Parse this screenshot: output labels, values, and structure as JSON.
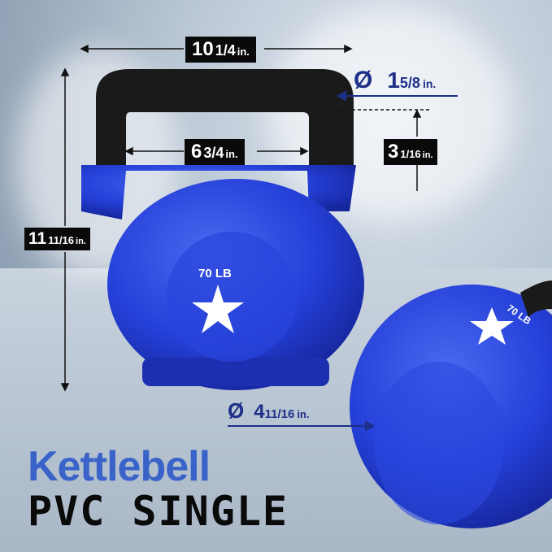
{
  "dimensions": {
    "width": {
      "whole": "10",
      "fraction": "1/4",
      "unit": "in."
    },
    "handle_diameter": {
      "symbol": "Ø",
      "whole": "1",
      "fraction": "5/8",
      "unit": "in."
    },
    "handle_inner_width": {
      "whole": "6",
      "fraction": "3/4",
      "unit": "in."
    },
    "handle_inner_height": {
      "whole": "3",
      "fraction": "1/16",
      "unit": "in."
    },
    "height": {
      "whole": "11",
      "fraction": "11/16",
      "unit": "in."
    },
    "base_diameter": {
      "symbol": "Ø",
      "whole": "4",
      "fraction": "11/16",
      "unit": "in."
    }
  },
  "product": {
    "weight_label": "70 LB",
    "title_line1": "Kettlebell",
    "title_line2": "PVC SINGLE"
  },
  "colors": {
    "kettlebell_blue": "#2540d8",
    "title_blue": "#3a63c9",
    "dimension_blue": "#1e2f8a",
    "handle_black": "#1a1a1a"
  },
  "icons": [
    "star-logo-icon",
    "diameter-icon"
  ]
}
